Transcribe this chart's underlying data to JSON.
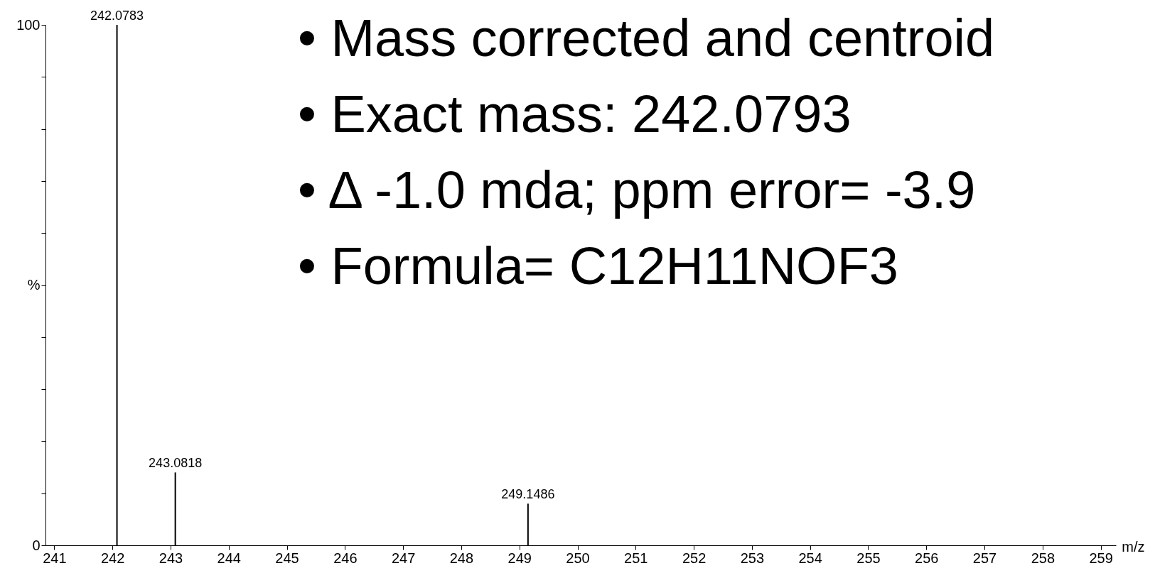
{
  "chart_data": {
    "type": "bar",
    "xlabel": "m/z",
    "x": [
      242.0783,
      243.0818,
      249.1486
    ],
    "values": [
      100,
      14,
      8
    ],
    "color": "#000000",
    "xlim": [
      240.91,
      259.2
    ],
    "xticks": [
      241,
      242,
      243,
      244,
      245,
      246,
      247,
      248,
      249,
      250,
      251,
      252,
      253,
      254,
      255,
      256,
      257,
      258,
      259
    ],
    "ylim": [
      0,
      100
    ],
    "yticks": [
      0,
      {
        "value": 10,
        "label": null
      },
      {
        "value": 20,
        "label": null
      },
      {
        "value": 30,
        "label": null
      },
      {
        "value": 40,
        "label": null
      },
      {
        "value": 50,
        "label": "%"
      },
      {
        "value": 60,
        "label": null
      },
      {
        "value": 70,
        "label": null
      },
      {
        "value": 80,
        "label": null
      },
      {
        "value": 90,
        "label": null
      },
      100
    ],
    "grid": false,
    "annotations": [
      {
        "text": "242.0783",
        "x": 242.0783,
        "y": 100
      },
      {
        "text": "243.0818",
        "x": 243.0818,
        "y": 14
      },
      {
        "text": "249.1486",
        "x": 249.1486,
        "y": 8
      },
      "• Mass corrected and centroid",
      "• Exact mass: 242.0793",
      "• Δ -1.0 mda; ppm error= -3.9",
      "• Formula= C12H11NOF3"
    ]
  }
}
